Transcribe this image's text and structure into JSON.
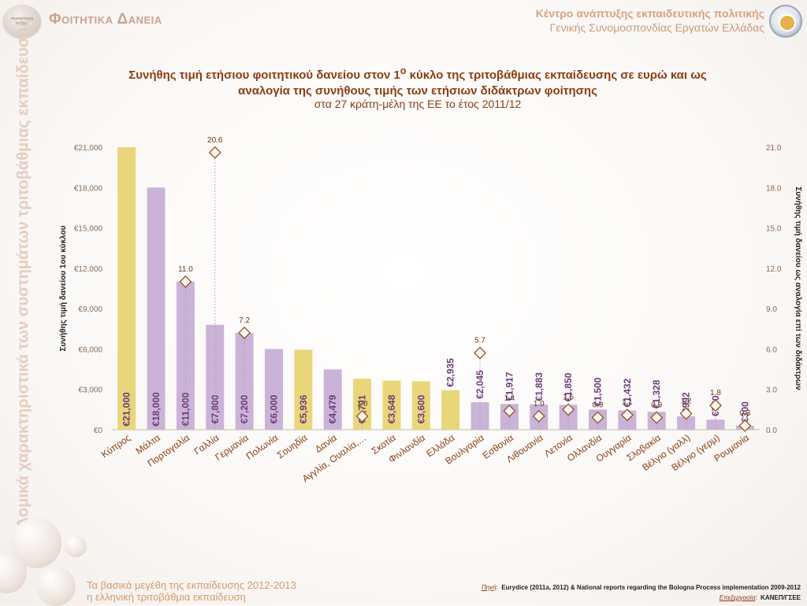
{
  "header": {
    "page_title": "Φοιτητικα Δανεια",
    "org_line1": "Κέντρο ανάπτυξης εκπαιδευτικής πολιτικής",
    "org_line2": "Γενικής Συνομοσπονδίας Εργατών Ελλάδας",
    "left_logo_text": "περισσότερη",
    "left_logo_text2": "παιδεία"
  },
  "side_text": "Δομικά χαρακτηριστικά των συστημάτων τριτοβάθμιας εκπαίδευσης",
  "footer": {
    "line1": "Τα βασικά μεγέθη της εκπαίδευσης 2012-2013",
    "line2": "η ελληνική τριτοβάθμια εκπαίδευση",
    "source_label": "Πηγή",
    "source_text": "Eurydice (2011a, 2012) & National reports regarding the Bologna Process implementation 2009-2012",
    "processing_label": "Επεξεργασία",
    "processing_text": "ΚΑΝΕΠ/ΓΣΕΕ"
  },
  "colors": {
    "bar_purple": "#cbb3d8",
    "bar_yellow": "#ead67a",
    "marker_fill": "#fdf6ee",
    "marker_stroke": "#8a4a1a",
    "axis_text": "#8a6a55",
    "bar_label": "#6b3d7a",
    "title": "#8a3d12"
  },
  "chart_data": {
    "type": "bar",
    "title": "Συνήθης τιμή ετήσιου φοιτητικού δανείου στον 1ο κύκλο της τριτοβάθμιας εκπαίδευσης σε ευρώ και ως αναλογία της συνήθους τιμής των ετήσιων διδάκτρων φοίτησης",
    "title_part1": "Συνήθης τιμή ετήσιου φοιτητικού δανείου στον 1",
    "title_sup": "ο",
    "title_part2": " κύκλο της τριτοβάθμιας εκπαίδευσης σε ευρώ και ως",
    "title_line2": "αναλογία της συνήθους τιμής των ετήσιων διδάκτρων φοίτησης",
    "subtitle": "στα 27 κράτη-μέλη της ΕΕ το έτος 2011/12",
    "ylabel": "Συνήθης τιμή δανείου 1ου κύκλου",
    "y2label": "Συνήθης τιμή δανείου ως αναλογία επί των διδάκτρων",
    "ylim": [
      0,
      21000
    ],
    "yticks": [
      0,
      3000,
      6000,
      9000,
      12000,
      15000,
      18000,
      21000
    ],
    "ytick_labels": [
      "€0",
      "€3,000",
      "€6,000",
      "€9,000",
      "€12,000",
      "€15,000",
      "€18,000",
      "€21,000"
    ],
    "y2lim": [
      0,
      21
    ],
    "y2ticks": [
      0,
      3,
      6,
      9,
      12,
      15,
      18,
      21
    ],
    "y2tick_labels": [
      "0.0",
      "3.0",
      "6.0",
      "9.0",
      "12.0",
      "15.0",
      "18.0",
      "21.0"
    ],
    "grid": false,
    "categories": [
      "Κύπρος",
      "Μάλτα",
      "Πορτογαλία",
      "Γαλλία",
      "Γερμανία",
      "Πολωνία",
      "Σουηδία",
      "Δανία",
      "Αγγλία, Ουαλία,…",
      "Σκοτία",
      "Φινλανδία",
      "Ελλάδα",
      "Βουλγαρία",
      "Εσθονία",
      "Λιθουανία",
      "Λετονία",
      "Ολλανδία",
      "Ουγγαρία",
      "Σλοβακία",
      "Βέλγιο (γαλλ)",
      "Βέλγιο (γερμ)",
      "Ρουμανία"
    ],
    "series": [
      {
        "type": "bar",
        "values": [
          21000,
          18000,
          11000,
          7800,
          7200,
          6000,
          5936,
          4479,
          3791,
          3648,
          3600,
          2935,
          2045,
          1917,
          1883,
          1850,
          1500,
          1432,
          1328,
          992,
          750,
          300
        ],
        "labels": [
          "€21,000",
          "€18,000",
          "€11,000",
          "€7,800",
          "€7,200",
          "€6,000",
          "€5,936",
          "€4,479",
          "€3,791",
          "€3,648",
          "€3,600",
          "€2,935",
          "€2,045",
          "€1,917",
          "€1,883",
          "€1,850",
          "€1,500",
          "€1,432",
          "€1,328",
          "€992",
          "€750",
          "€300"
        ],
        "colors": [
          "yellow",
          "purple",
          "purple",
          "purple",
          "purple",
          "purple",
          "yellow",
          "purple",
          "yellow",
          "yellow",
          "yellow",
          "yellow",
          "purple",
          "purple",
          "purple",
          "purple",
          "purple",
          "purple",
          "purple",
          "purple",
          "purple",
          "purple"
        ]
      },
      {
        "type": "scatter",
        "axis": "right",
        "values": [
          null,
          null,
          11.0,
          20.6,
          7.2,
          null,
          null,
          null,
          1.0,
          null,
          null,
          null,
          5.7,
          1.4,
          1.0,
          1.5,
          0.9,
          1.1,
          0.9,
          1.2,
          1.8,
          0.3
        ],
        "labels": [
          "",
          "",
          "11.0",
          "20.6",
          "7.2",
          "",
          "",
          "",
          "1.0",
          "",
          "",
          "",
          "5.7",
          "1.4",
          "1.0",
          "1.5",
          "0.9",
          "1.1",
          "0.9",
          "1.2",
          "1.8",
          "0.3"
        ]
      }
    ]
  }
}
